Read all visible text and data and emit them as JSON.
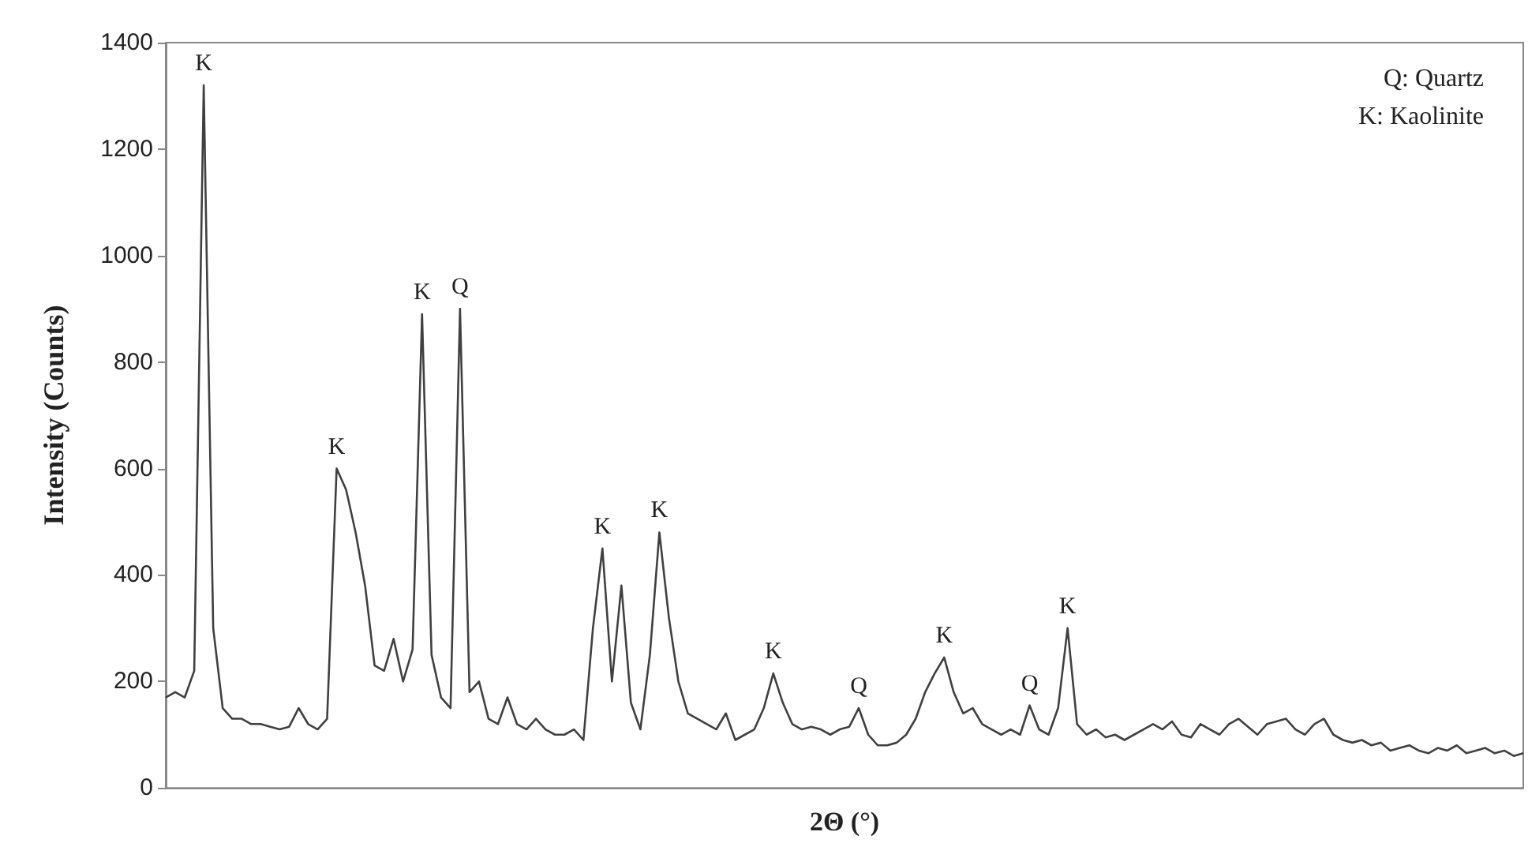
{
  "chart_data": {
    "type": "line",
    "xlabel": "2Θ (°)",
    "ylabel": "Intensity (Counts)",
    "annotations": [
      "Q: Quartz",
      "K: Kaolinite"
    ],
    "categories": [
      null,
      null,
      null,
      null,
      null,
      null,
      null,
      null,
      null,
      null,
      null,
      null,
      null,
      null,
      null,
      null,
      null,
      null,
      null,
      null,
      null,
      null,
      null,
      null,
      null,
      null,
      null,
      null,
      null,
      null,
      null,
      null,
      null,
      null,
      null,
      null,
      null,
      null,
      null,
      null,
      null,
      null,
      null,
      null,
      null,
      null,
      null,
      null,
      null,
      null,
      null,
      null,
      null,
      null,
      null,
      null,
      null,
      null,
      null,
      null,
      null,
      null,
      null,
      null,
      null,
      null,
      null,
      null,
      null,
      null,
      null,
      null,
      null,
      null,
      null,
      null,
      null,
      null,
      null,
      null,
      null,
      null,
      null,
      null,
      null,
      null,
      null,
      null,
      null,
      null,
      null,
      null,
      null,
      null,
      null,
      null,
      null,
      null,
      null,
      null,
      null,
      null,
      null,
      null,
      null,
      null,
      null,
      null,
      null,
      null,
      null,
      null,
      null,
      null,
      null,
      null,
      null,
      null,
      null,
      null,
      null,
      null,
      null,
      null,
      null,
      null,
      null,
      null,
      null,
      null,
      null,
      null,
      null,
      null,
      null,
      null,
      null,
      null,
      null,
      null,
      null,
      null,
      null,
      null
    ],
    "values": [
      170,
      180,
      170,
      220,
      1320,
      300,
      150,
      130,
      130,
      120,
      120,
      115,
      110,
      115,
      150,
      120,
      110,
      130,
      600,
      560,
      480,
      380,
      230,
      220,
      280,
      200,
      260,
      890,
      250,
      170,
      150,
      900,
      180,
      200,
      130,
      120,
      170,
      120,
      110,
      130,
      110,
      100,
      100,
      110,
      90,
      300,
      450,
      200,
      380,
      160,
      110,
      250,
      480,
      320,
      200,
      140,
      130,
      120,
      110,
      140,
      90,
      100,
      110,
      150,
      215,
      160,
      120,
      110,
      115,
      110,
      100,
      110,
      115,
      150,
      100,
      80,
      80,
      85,
      100,
      130,
      180,
      215,
      245,
      180,
      140,
      150,
      120,
      110,
      100,
      110,
      100,
      155,
      110,
      100,
      150,
      300,
      120,
      100,
      110,
      95,
      100,
      90,
      100,
      110,
      120,
      110,
      125,
      100,
      95,
      120,
      110,
      100,
      120,
      130,
      115,
      100,
      120,
      125,
      130,
      110,
      100,
      120,
      130,
      100,
      90,
      85,
      90,
      80,
      85,
      70,
      75,
      80,
      70,
      65,
      75,
      70,
      80,
      65,
      70,
      75,
      65,
      70,
      60,
      65
    ],
    "value_labels": [
      null,
      null,
      null,
      null,
      "K",
      null,
      null,
      null,
      null,
      null,
      null,
      null,
      null,
      null,
      null,
      null,
      null,
      null,
      "K",
      null,
      null,
      null,
      null,
      null,
      null,
      null,
      null,
      "K",
      null,
      null,
      null,
      "Q",
      null,
      null,
      null,
      null,
      null,
      null,
      null,
      null,
      null,
      null,
      null,
      null,
      null,
      null,
      "K",
      null,
      null,
      null,
      null,
      null,
      "K",
      null,
      null,
      null,
      null,
      null,
      null,
      null,
      null,
      null,
      null,
      null,
      "K",
      null,
      null,
      null,
      null,
      null,
      null,
      null,
      null,
      "Q",
      null,
      null,
      null,
      null,
      null,
      null,
      null,
      null,
      "K",
      null,
      null,
      null,
      null,
      null,
      null,
      null,
      null,
      "Q",
      null,
      null,
      null,
      "K",
      null,
      null,
      null,
      null,
      null,
      null,
      null,
      null,
      null,
      null,
      null,
      null,
      null,
      null,
      null,
      null,
      null,
      null,
      null,
      null,
      null,
      null,
      null,
      null,
      null,
      null,
      null,
      null,
      null,
      null,
      null,
      null,
      null,
      null,
      null,
      null,
      null,
      null,
      null,
      null,
      null,
      null,
      null,
      null,
      null,
      null,
      null,
      null
    ],
    "color": "#404040",
    "ylim": [
      0,
      1400
    ],
    "yticks": [
      0,
      200,
      400,
      600,
      800,
      1000,
      1200,
      1400
    ],
    "grid": false,
    "marker": "none",
    "line_style": "solid"
  }
}
